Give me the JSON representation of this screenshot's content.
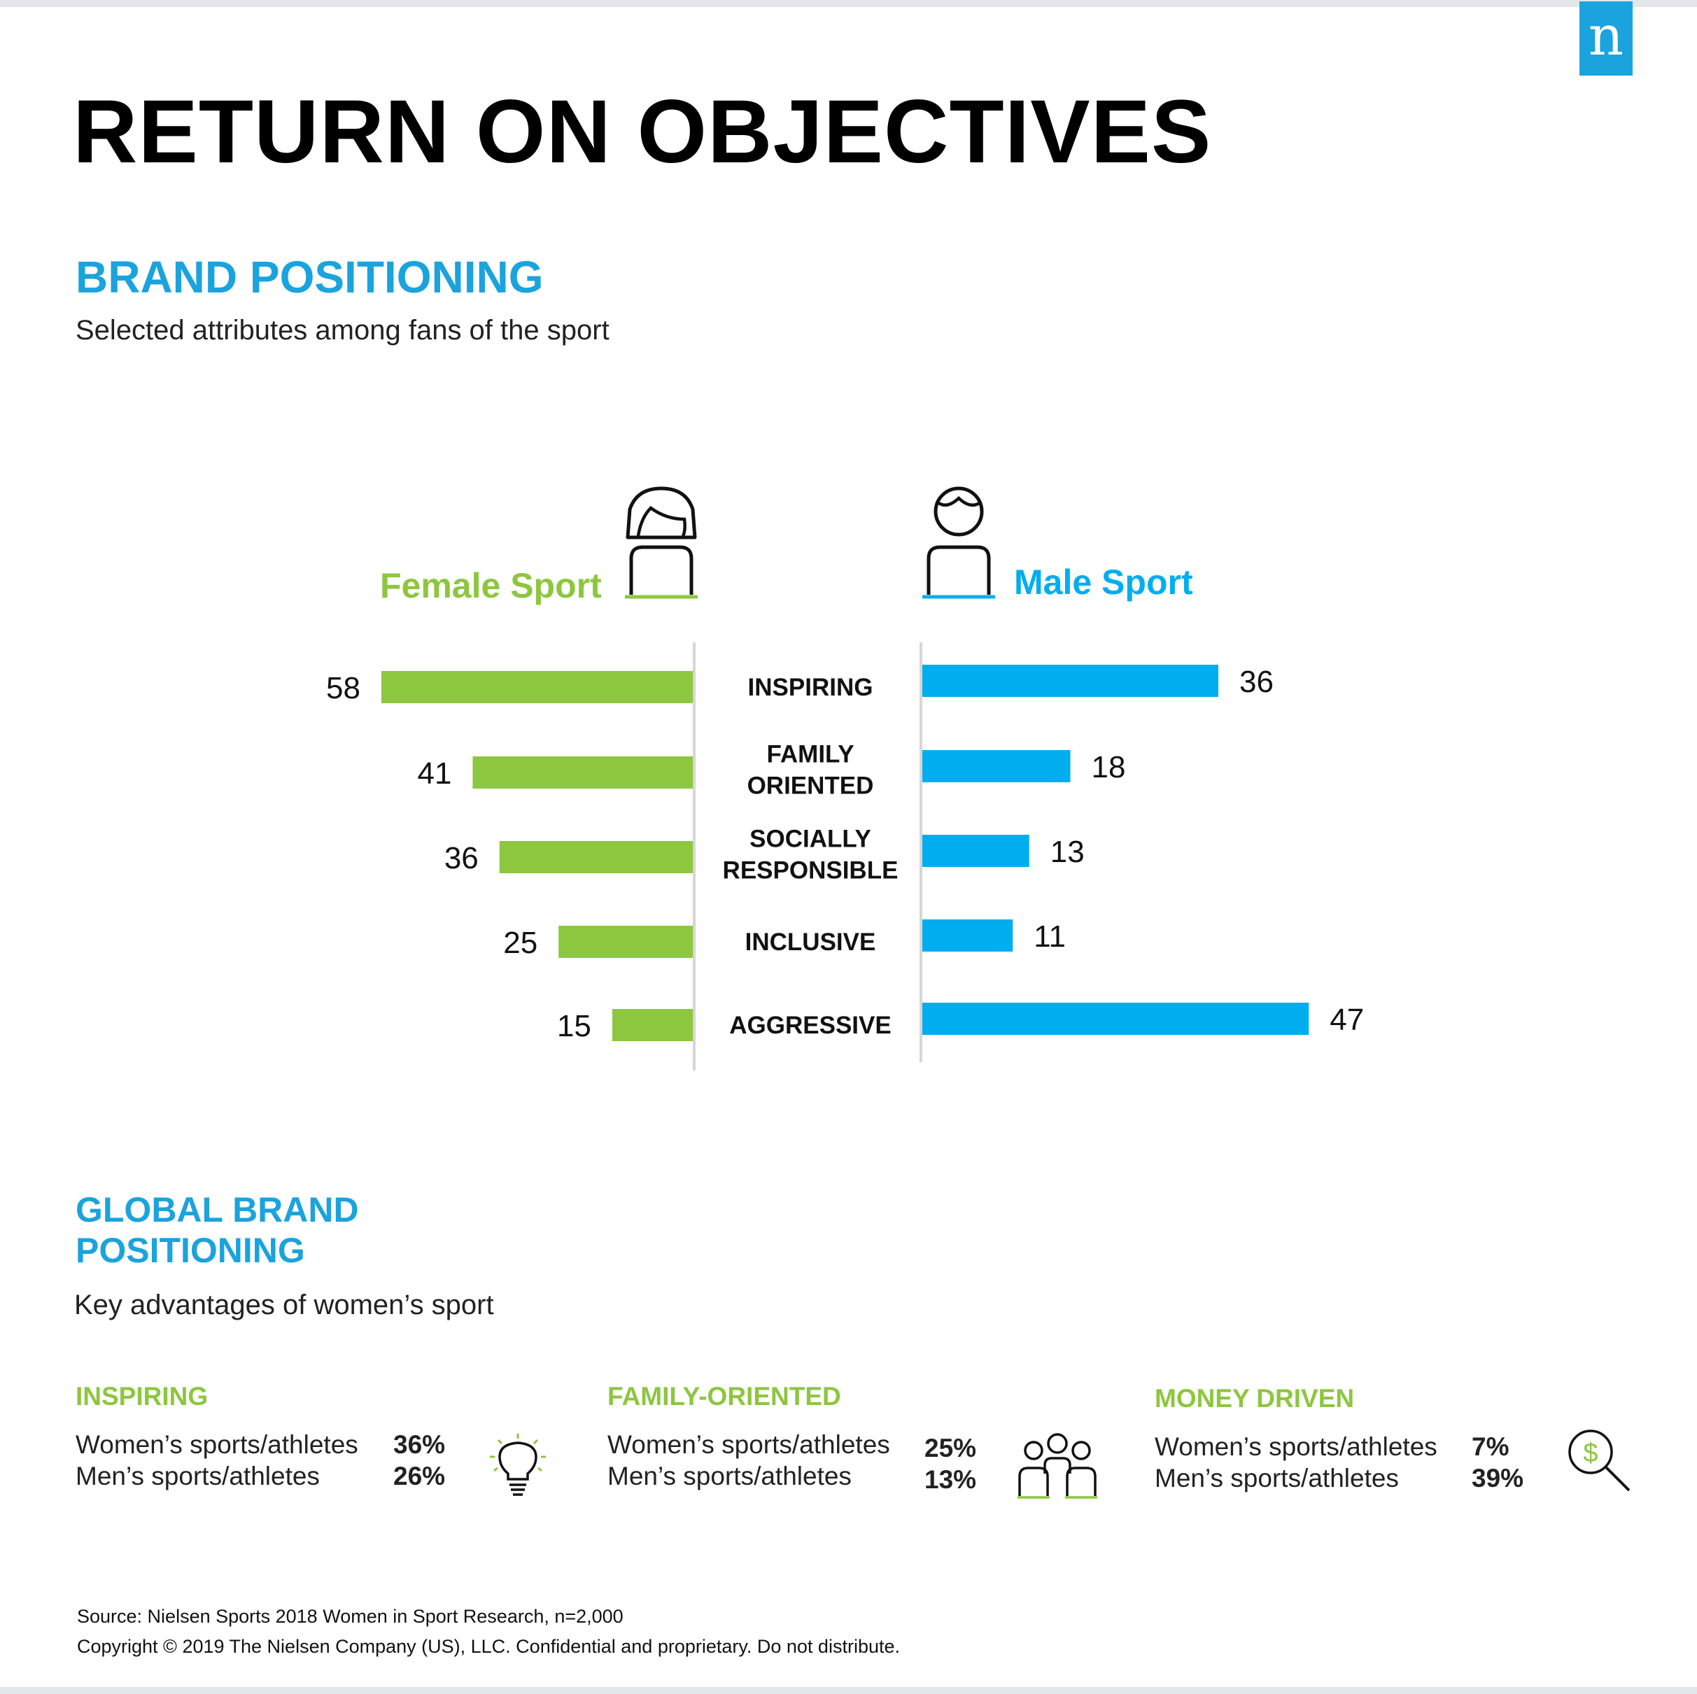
{
  "brand": {
    "logo_letter": "n",
    "logo_color": "#1aa3dd"
  },
  "title": "RETURN ON OBJECTIVES",
  "brand_positioning": {
    "heading": "BRAND POSITIONING",
    "subtitle": "Selected attributes among fans of the sport",
    "female_label": "Female Sport",
    "male_label": "Male Sport"
  },
  "chart_data": {
    "type": "bar",
    "orientation": "horizontal-diverging",
    "categories": [
      "INSPIRING",
      "FAMILY ORIENTED",
      "SOCIALLY RESPONSIBLE",
      "INCLUSIVE",
      "AGGRESSIVE"
    ],
    "series": [
      {
        "name": "Female Sport",
        "color": "#8dc63f",
        "values": [
          58,
          41,
          36,
          25,
          15
        ]
      },
      {
        "name": "Male Sport",
        "color": "#00aeef",
        "values": [
          36,
          18,
          13,
          11,
          47
        ]
      }
    ],
    "xlim": [
      0,
      60
    ],
    "grid": false
  },
  "global": {
    "heading_line1": "GLOBAL BRAND",
    "heading_line2": "POSITIONING",
    "subtitle": "Key advantages of women’s sport",
    "items": [
      {
        "title": "INSPIRING",
        "icon": "lightbulb-icon",
        "women_label": "Women’s sports/athletes",
        "women_value": "36%",
        "men_label": "Men’s sports/athletes",
        "men_value": "26%"
      },
      {
        "title": "FAMILY-ORIENTED",
        "icon": "family-icon",
        "women_label": "Women’s sports/athletes",
        "women_value": "25%",
        "men_label": "Men’s sports/athletes",
        "men_value": "13%"
      },
      {
        "title": "MONEY DRIVEN",
        "icon": "money-search-icon",
        "women_label": "Women’s sports/athletes",
        "women_value": "7%",
        "men_label": "Men’s sports/athletes",
        "men_value": "39%"
      }
    ]
  },
  "footer": {
    "source": "Source: Nielsen Sports 2018 Women in Sport Research, n=2,000",
    "copyright": "Copyright © 2019 The Nielsen Company (US), LLC. Confidential and proprietary. Do not distribute."
  },
  "colors": {
    "female": "#8dc63f",
    "male": "#00aeef",
    "heading": "#1aa3dd"
  }
}
